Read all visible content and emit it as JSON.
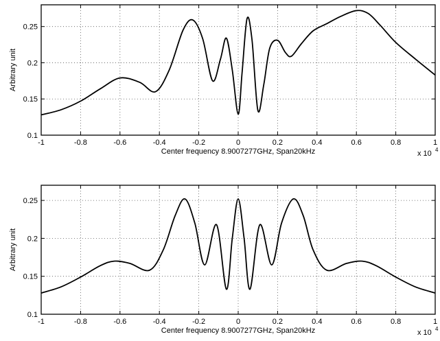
{
  "chart_data": [
    {
      "type": "line",
      "title": "",
      "xlabel": "Center frequency 8.9007277GHz, Span20kHz",
      "ylabel": "Arbitrary unit",
      "x_multiplier_label": "x 10",
      "x_multiplier_exponent": "4",
      "xlim": [
        -1,
        1
      ],
      "ylim": [
        0.1,
        0.28
      ],
      "xticks": [
        -1,
        -0.8,
        -0.6,
        -0.4,
        -0.2,
        0,
        0.2,
        0.4,
        0.6,
        0.8,
        1
      ],
      "xtick_labels": [
        "-1",
        "-0.8",
        "-0.6",
        "-0.4",
        "-0.2",
        "0",
        "0.2",
        "0.4",
        "0.6",
        "0.8",
        "1"
      ],
      "yticks": [
        0.1,
        0.15,
        0.2,
        0.25
      ],
      "ytick_labels": [
        "0.1",
        "0.15",
        "0.2",
        "0.25"
      ],
      "grid": true,
      "line_color": "#000000",
      "series": [
        {
          "x": [
            -1,
            -0.9,
            -0.8,
            -0.7,
            -0.6,
            -0.5,
            -0.42,
            -0.35,
            -0.28,
            -0.23,
            -0.18,
            -0.13,
            -0.09,
            -0.06,
            -0.03,
            0,
            0.02,
            0.045,
            0.07,
            0.1,
            0.13,
            0.16,
            0.2,
            0.24,
            0.27,
            0.32,
            0.38,
            0.45,
            0.52,
            0.6,
            0.66,
            0.72,
            0.8,
            0.9,
            1
          ],
          "y": [
            0.128,
            0.135,
            0.147,
            0.164,
            0.179,
            0.173,
            0.16,
            0.19,
            0.245,
            0.259,
            0.233,
            0.175,
            0.205,
            0.234,
            0.19,
            0.129,
            0.187,
            0.261,
            0.232,
            0.134,
            0.17,
            0.22,
            0.231,
            0.214,
            0.209,
            0.226,
            0.244,
            0.254,
            0.264,
            0.272,
            0.268,
            0.252,
            0.228,
            0.205,
            0.183
          ]
        }
      ]
    },
    {
      "type": "line",
      "title": "",
      "xlabel": "Center frequency 8.9007277GHz, Span20kHz",
      "ylabel": "Arbitrary unit",
      "x_multiplier_label": "x 10",
      "x_multiplier_exponent": "4",
      "xlim": [
        -1,
        1
      ],
      "ylim": [
        0.1,
        0.27
      ],
      "xticks": [
        -1,
        -0.8,
        -0.6,
        -0.4,
        -0.2,
        0,
        0.2,
        0.4,
        0.6,
        0.8,
        1
      ],
      "xtick_labels": [
        "-1",
        "-0.8",
        "-0.6",
        "-0.4",
        "-0.2",
        "0",
        "0.2",
        "0.4",
        "0.6",
        "0.8",
        "1"
      ],
      "yticks": [
        0.1,
        0.15,
        0.2,
        0.25
      ],
      "ytick_labels": [
        "0.1",
        "0.15",
        "0.2",
        "0.25"
      ],
      "grid": true,
      "line_color": "#000000",
      "series": [
        {
          "x": [
            -1,
            -0.9,
            -0.8,
            -0.7,
            -0.63,
            -0.55,
            -0.45,
            -0.38,
            -0.32,
            -0.27,
            -0.22,
            -0.17,
            -0.11,
            -0.06,
            -0.03,
            0,
            0.03,
            0.06,
            0.11,
            0.17,
            0.22,
            0.28,
            0.33,
            0.38,
            0.45,
            0.55,
            0.63,
            0.7,
            0.8,
            0.9,
            1
          ],
          "y": [
            0.128,
            0.136,
            0.149,
            0.164,
            0.17,
            0.167,
            0.158,
            0.185,
            0.23,
            0.252,
            0.22,
            0.165,
            0.218,
            0.133,
            0.2,
            0.252,
            0.2,
            0.133,
            0.218,
            0.165,
            0.22,
            0.252,
            0.23,
            0.185,
            0.158,
            0.167,
            0.17,
            0.164,
            0.149,
            0.136,
            0.128
          ]
        }
      ]
    }
  ]
}
